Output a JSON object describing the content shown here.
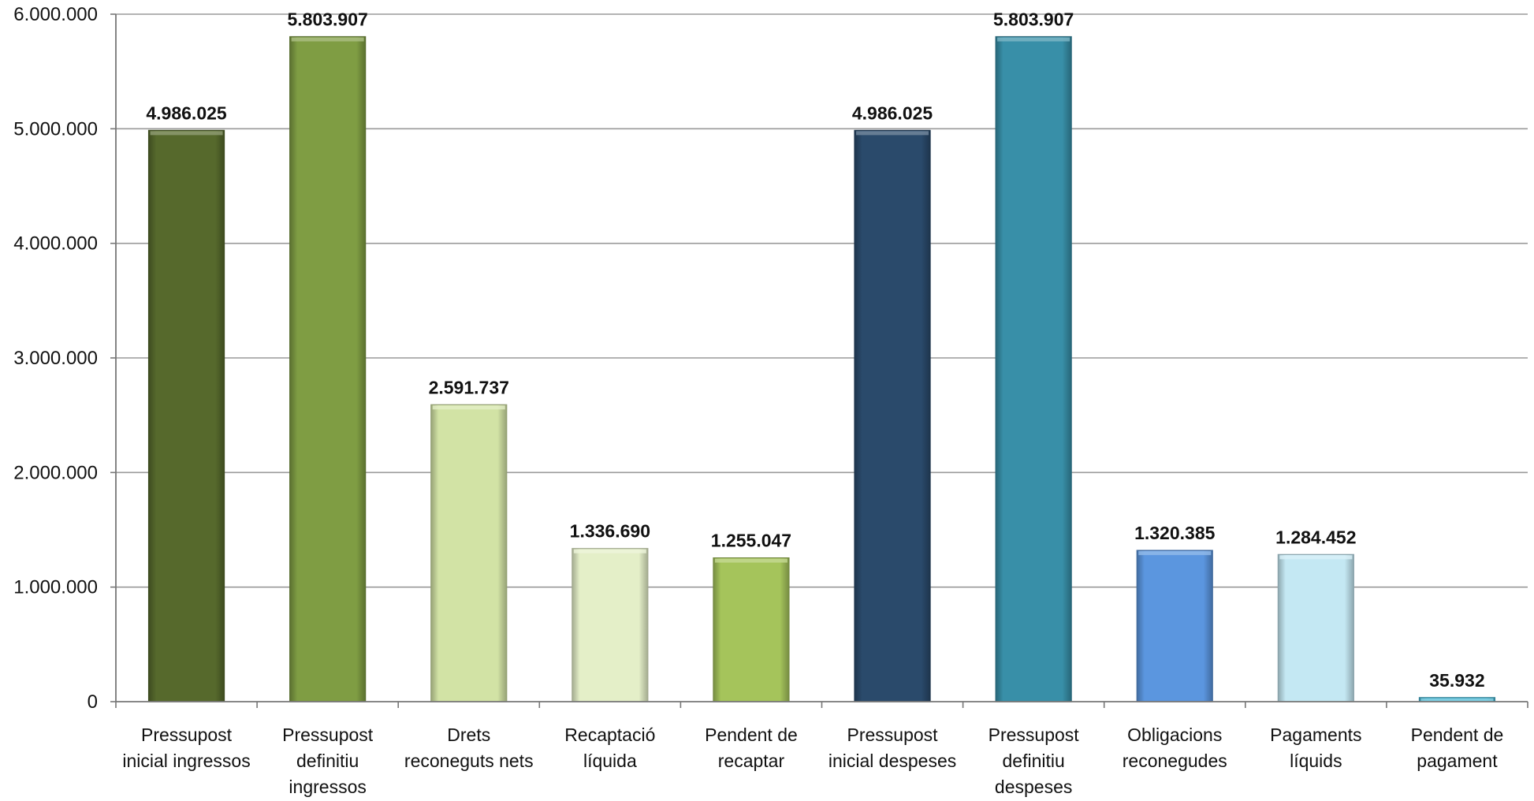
{
  "chart_data": {
    "type": "bar",
    "title": "",
    "xlabel": "",
    "ylabel": "",
    "ylim": [
      0,
      6000000
    ],
    "yticks": [
      0,
      1000000,
      2000000,
      3000000,
      4000000,
      5000000,
      6000000
    ],
    "ytick_labels": [
      "0",
      "1.000.000",
      "2.000.000",
      "3.000.000",
      "4.000.000",
      "5.000.000",
      "6.000.000"
    ],
    "grid": "horizontal",
    "legend": "none",
    "categories": [
      [
        "Pressupost",
        "inicial ingressos"
      ],
      [
        "Pressupost",
        "definitiu",
        "ingressos"
      ],
      [
        "Drets",
        "reconeguts nets"
      ],
      [
        "Recaptació",
        "líquida"
      ],
      [
        "Pendent de",
        "recaptar"
      ],
      [
        "Pressupost",
        "inicial despeses"
      ],
      [
        "Pressupost",
        "definitiu",
        "despeses"
      ],
      [
        "Obligacions",
        "reconegudes"
      ],
      [
        "Pagaments",
        "líquids"
      ],
      [
        "Pendent de",
        "pagament"
      ]
    ],
    "values": [
      4986025,
      5803907,
      2591737,
      1336690,
      1255047,
      4986025,
      5803907,
      1320385,
      1284452,
      35932
    ],
    "data_labels": [
      "4.986.025",
      "5.803.907",
      "2.591.737",
      "1.336.690",
      "1.255.047",
      "4.986.025",
      "5.803.907",
      "1.320.385",
      "1.284.452",
      "35.932"
    ],
    "colors": [
      "#56692c",
      "#7f9d43",
      "#d2e3a5",
      "#e4efc8",
      "#a5c45b",
      "#2a4a6b",
      "#388fa8",
      "#5b96df",
      "#c4e8f3",
      "#4bb9d6"
    ]
  }
}
